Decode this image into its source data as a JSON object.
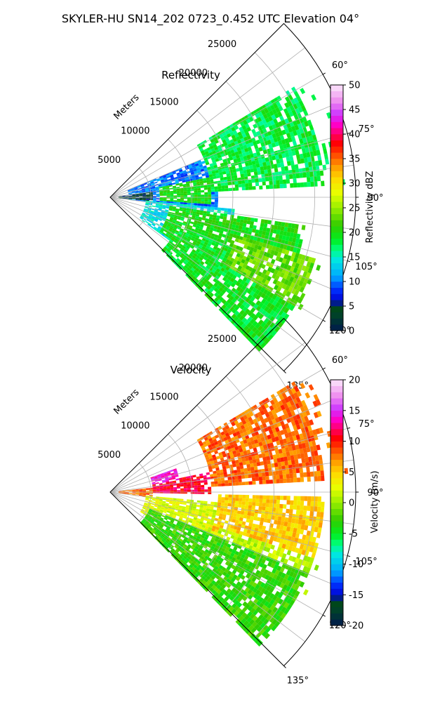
{
  "figure": {
    "title": "SKYLER-HU  SN14_202  0723_0.452 UTC Elevation 04°"
  },
  "chart_data": [
    {
      "type": "heatmap",
      "subtype": "polar-sector (radar PPI)",
      "title": "Reflectivity",
      "radial_axis_label": "Meters",
      "radial_ticks": [
        5000,
        10000,
        15000,
        20000,
        25000
      ],
      "radial_tick_labels": [
        "5000",
        "10000",
        "15000",
        "20000",
        "25000"
      ],
      "rlim": [
        0,
        30000
      ],
      "azimuth_range_deg": [
        45,
        135
      ],
      "azimuth_ticks_deg": [
        60,
        75,
        90,
        105,
        120,
        135
      ],
      "azimuth_tick_labels": [
        "60°",
        "75°",
        "90°",
        "105°",
        "120°",
        "135°"
      ],
      "grid": true,
      "colorbar": {
        "label": "Reflectivity dBZ",
        "range": [
          0,
          50
        ],
        "ticks": [
          0,
          5,
          10,
          15,
          20,
          25,
          30,
          35,
          40,
          45,
          50
        ],
        "tick_labels": [
          "0",
          "5",
          "10",
          "15",
          "20",
          "25",
          "30",
          "35",
          "40",
          "45",
          "50"
        ]
      },
      "echo_regions": [
        {
          "az": [
            67,
            96
          ],
          "r": [
            2000,
            13000
          ],
          "value": 10
        },
        {
          "az": [
            78,
            93
          ],
          "r": [
            6000,
            12000
          ],
          "value": 20
        },
        {
          "az": [
            82,
            95
          ],
          "r": [
            1000,
            5000
          ],
          "value": 4
        },
        {
          "az": [
            95,
            125
          ],
          "r": [
            4000,
            15000
          ],
          "value": 14
        },
        {
          "az": [
            98,
            124
          ],
          "r": [
            7000,
            24000
          ],
          "value": 20
        },
        {
          "az": [
            112,
            135
          ],
          "r": [
            9000,
            26000
          ],
          "value": 19
        },
        {
          "az": [
            106,
            120
          ],
          "r": [
            16000,
            27000
          ],
          "value": 23
        },
        {
          "az": [
            58,
            86
          ],
          "r": [
            12000,
            29000
          ],
          "value": 18
        }
      ]
    },
    {
      "type": "heatmap",
      "subtype": "polar-sector (radar PPI)",
      "title": "Velocity",
      "radial_axis_label": "Meters",
      "radial_ticks": [
        5000,
        10000,
        15000,
        20000,
        25000
      ],
      "radial_tick_labels": [
        "5000",
        "10000",
        "15000",
        "20000",
        "25000"
      ],
      "rlim": [
        0,
        30000
      ],
      "azimuth_range_deg": [
        45,
        135
      ],
      "azimuth_ticks_deg": [
        60,
        75,
        90,
        105,
        120,
        135
      ],
      "azimuth_tick_labels": [
        "60°",
        "75°",
        "90°",
        "105°",
        "120°",
        "135°"
      ],
      "grid": true,
      "colorbar": {
        "label": "Velocity (m/s)",
        "range": [
          -20,
          20
        ],
        "ticks": [
          -20,
          -15,
          -10,
          -5,
          0,
          5,
          10,
          15,
          20
        ],
        "tick_labels": [
          "-20",
          "-15",
          "-10",
          "-5",
          "0",
          "5",
          "10",
          "15",
          "20"
        ]
      },
      "echo_regions": [
        {
          "az": [
            78,
            90
          ],
          "r": [
            5000,
            12000
          ],
          "value": 11
        },
        {
          "az": [
            70,
            80
          ],
          "r": [
            5000,
            8500
          ],
          "value": 14
        },
        {
          "az": [
            84,
            97
          ],
          "r": [
            1000,
            5000
          ],
          "value": 8
        },
        {
          "az": [
            95,
            123
          ],
          "r": [
            4000,
            16000
          ],
          "value": 2
        },
        {
          "az": [
            90,
            110
          ],
          "r": [
            13000,
            26000
          ],
          "value": 5
        },
        {
          "az": [
            108,
            125
          ],
          "r": [
            14000,
            27000
          ],
          "value": 1
        },
        {
          "az": [
            112,
            135
          ],
          "r": [
            5000,
            26000
          ],
          "value": -3
        },
        {
          "az": [
            58,
            86
          ],
          "r": [
            12000,
            29000
          ],
          "value": 8
        }
      ]
    }
  ]
}
